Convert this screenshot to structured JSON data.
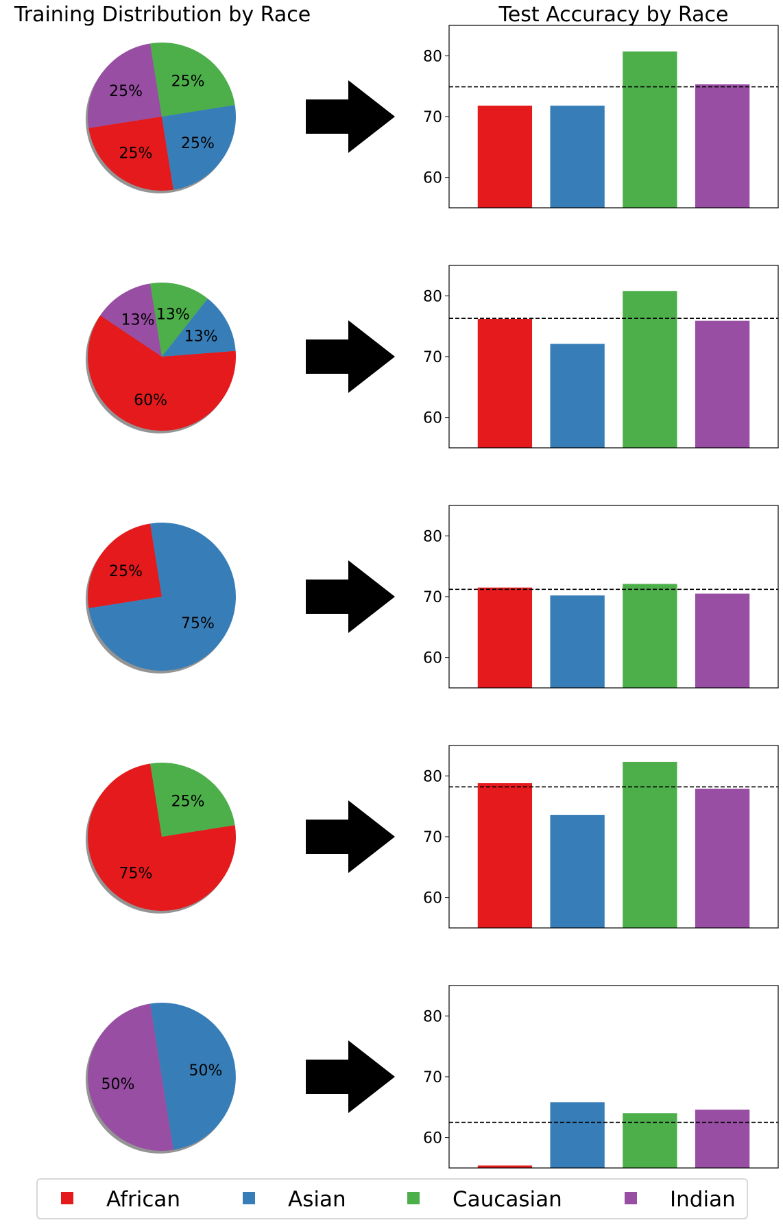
{
  "titles": {
    "left": "Training Distribution by Race",
    "right": "Test Accuracy by Race"
  },
  "colors": {
    "African": "#e41a1c",
    "Asian": "#377eb8",
    "Caucasian": "#4daf4a",
    "Indian": "#984ea3"
  },
  "legend": {
    "entries": [
      "African",
      "Asian",
      "Caucasian",
      "Indian"
    ]
  },
  "chart_data": [
    {
      "type": "pie",
      "slices": [
        {
          "category": "Indian",
          "value": 25,
          "label": "25%"
        },
        {
          "category": "African",
          "value": 25,
          "label": "25%"
        },
        {
          "category": "Asian",
          "value": 25,
          "label": "25%"
        },
        {
          "category": "Caucasian",
          "value": 25,
          "label": "25%"
        }
      ]
    },
    {
      "type": "bar",
      "categories": [
        "African",
        "Asian",
        "Caucasian",
        "Indian"
      ],
      "values": [
        71.8,
        71.8,
        80.7,
        75.3
      ],
      "mean_line": 74.9,
      "ylim": [
        55,
        85
      ],
      "yticks": [
        60,
        70,
        80
      ]
    },
    {
      "type": "pie",
      "slices": [
        {
          "category": "Indian",
          "value": 13,
          "label": "13%"
        },
        {
          "category": "African",
          "value": 60,
          "label": "60%"
        },
        {
          "category": "Asian",
          "value": 13,
          "label": "13%"
        },
        {
          "category": "Caucasian",
          "value": 13,
          "label": "13%"
        }
      ]
    },
    {
      "type": "bar",
      "categories": [
        "African",
        "Asian",
        "Caucasian",
        "Indian"
      ],
      "values": [
        76.2,
        72.1,
        80.8,
        75.9
      ],
      "mean_line": 76.3,
      "ylim": [
        55,
        85
      ],
      "yticks": [
        60,
        70,
        80
      ]
    },
    {
      "type": "pie",
      "slices": [
        {
          "category": "African",
          "value": 25,
          "label": "25%"
        },
        {
          "category": "Asian",
          "value": 75,
          "label": "75%"
        }
      ]
    },
    {
      "type": "bar",
      "categories": [
        "African",
        "Asian",
        "Caucasian",
        "Indian"
      ],
      "values": [
        71.5,
        70.2,
        72.1,
        70.5
      ],
      "mean_line": 71.2,
      "ylim": [
        55,
        85
      ],
      "yticks": [
        60,
        70,
        80
      ]
    },
    {
      "type": "pie",
      "slices": [
        {
          "category": "African",
          "value": 75,
          "label": "75%"
        },
        {
          "category": "Caucasian",
          "value": 25,
          "label": "25%"
        }
      ]
    },
    {
      "type": "bar",
      "categories": [
        "African",
        "Asian",
        "Caucasian",
        "Indian"
      ],
      "values": [
        78.8,
        73.6,
        82.3,
        77.9
      ],
      "mean_line": 78.2,
      "ylim": [
        55,
        85
      ],
      "yticks": [
        60,
        70,
        80
      ]
    },
    {
      "type": "pie",
      "slices": [
        {
          "category": "Indian",
          "value": 50,
          "label": "50%"
        },
        {
          "category": "Asian",
          "value": 50,
          "label": "50%"
        }
      ]
    },
    {
      "type": "bar",
      "categories": [
        "African",
        "Asian",
        "Caucasian",
        "Indian"
      ],
      "values": [
        55.4,
        65.8,
        64.0,
        64.6
      ],
      "mean_line": 62.5,
      "ylim": [
        55,
        85
      ],
      "yticks": [
        60,
        70,
        80
      ]
    }
  ]
}
